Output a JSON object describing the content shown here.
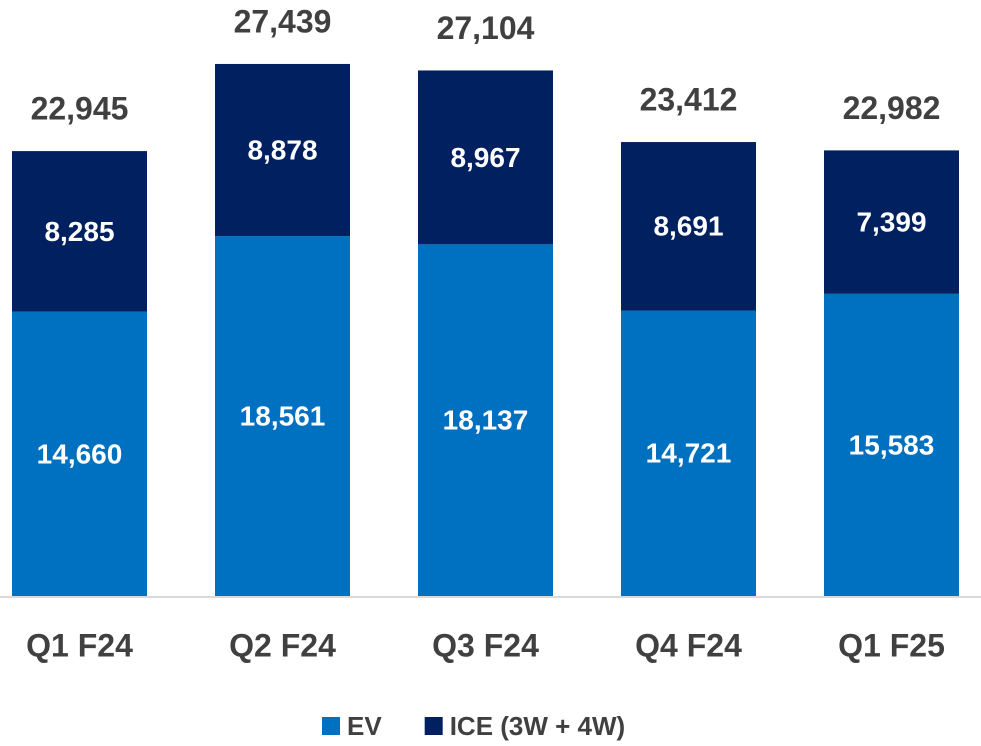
{
  "chart_data": {
    "type": "stacked_bar",
    "categories": [
      "Q1 F24",
      "Q2 F24",
      "Q3 F24",
      "Q4 F24",
      "Q1 F25"
    ],
    "series": [
      {
        "name": "EV",
        "color": "#0070c0",
        "values": [
          14660,
          18561,
          18137,
          14721,
          15583
        ],
        "value_labels": [
          "14,660",
          "18,561",
          "18,137",
          "14,721",
          "15,583"
        ]
      },
      {
        "name": "ICE (3W + 4W)",
        "color": "#002060",
        "values": [
          8285,
          8878,
          8967,
          8691,
          7399
        ],
        "value_labels": [
          "8,285",
          "8,878",
          "8,967",
          "8,691",
          "7,399"
        ]
      }
    ],
    "totals": [
      22945,
      27439,
      27104,
      23412,
      22982
    ],
    "total_labels": [
      "22,945",
      "27,439",
      "27,104",
      "23,412",
      "22,982"
    ],
    "legend": "bottom"
  }
}
